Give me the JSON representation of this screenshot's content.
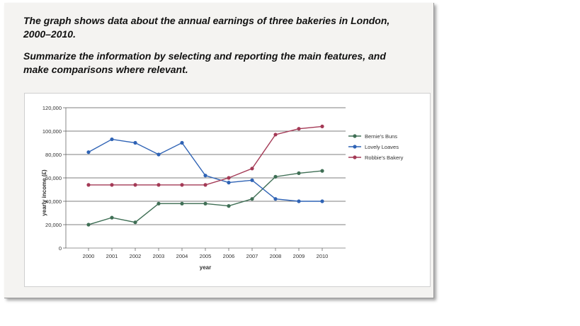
{
  "prompt": {
    "line1": "The graph shows data about the annual earnings of three bakeries in London,",
    "line2": "2000–2010.",
    "line3": "Summarize the information by selecting and reporting the main features, and",
    "line4": "make comparisons where relevant."
  },
  "chart_data": {
    "type": "line",
    "title": "",
    "xlabel": "year",
    "ylabel": "yearly income (£)",
    "x": [
      "2000",
      "2001",
      "2002",
      "2003",
      "2004",
      "2005",
      "2006",
      "2007",
      "2008",
      "2009",
      "2010"
    ],
    "ylim": [
      0,
      120000
    ],
    "yticks": [
      0,
      20000,
      40000,
      60000,
      80000,
      100000,
      120000
    ],
    "ytick_labels": [
      "0",
      "20,000",
      "40,000",
      "60,000",
      "80,000",
      "100,000",
      "120,000"
    ],
    "grid": true,
    "legend_position": "right",
    "series": [
      {
        "name": "Bernie's Buns",
        "color": "#3f6f55",
        "values": [
          20000,
          26000,
          22000,
          38000,
          38000,
          38000,
          36000,
          42000,
          61000,
          64000,
          66000
        ]
      },
      {
        "name": "Lovely Loaves",
        "color": "#2f63b5",
        "values": [
          82000,
          93000,
          90000,
          80000,
          90000,
          62000,
          56000,
          58000,
          42000,
          40000,
          40000
        ]
      },
      {
        "name": "Robbie's Bakery",
        "color": "#a43a56",
        "values": [
          54000,
          54000,
          54000,
          54000,
          54000,
          54000,
          60000,
          68000,
          97000,
          102000,
          104000
        ]
      }
    ]
  }
}
